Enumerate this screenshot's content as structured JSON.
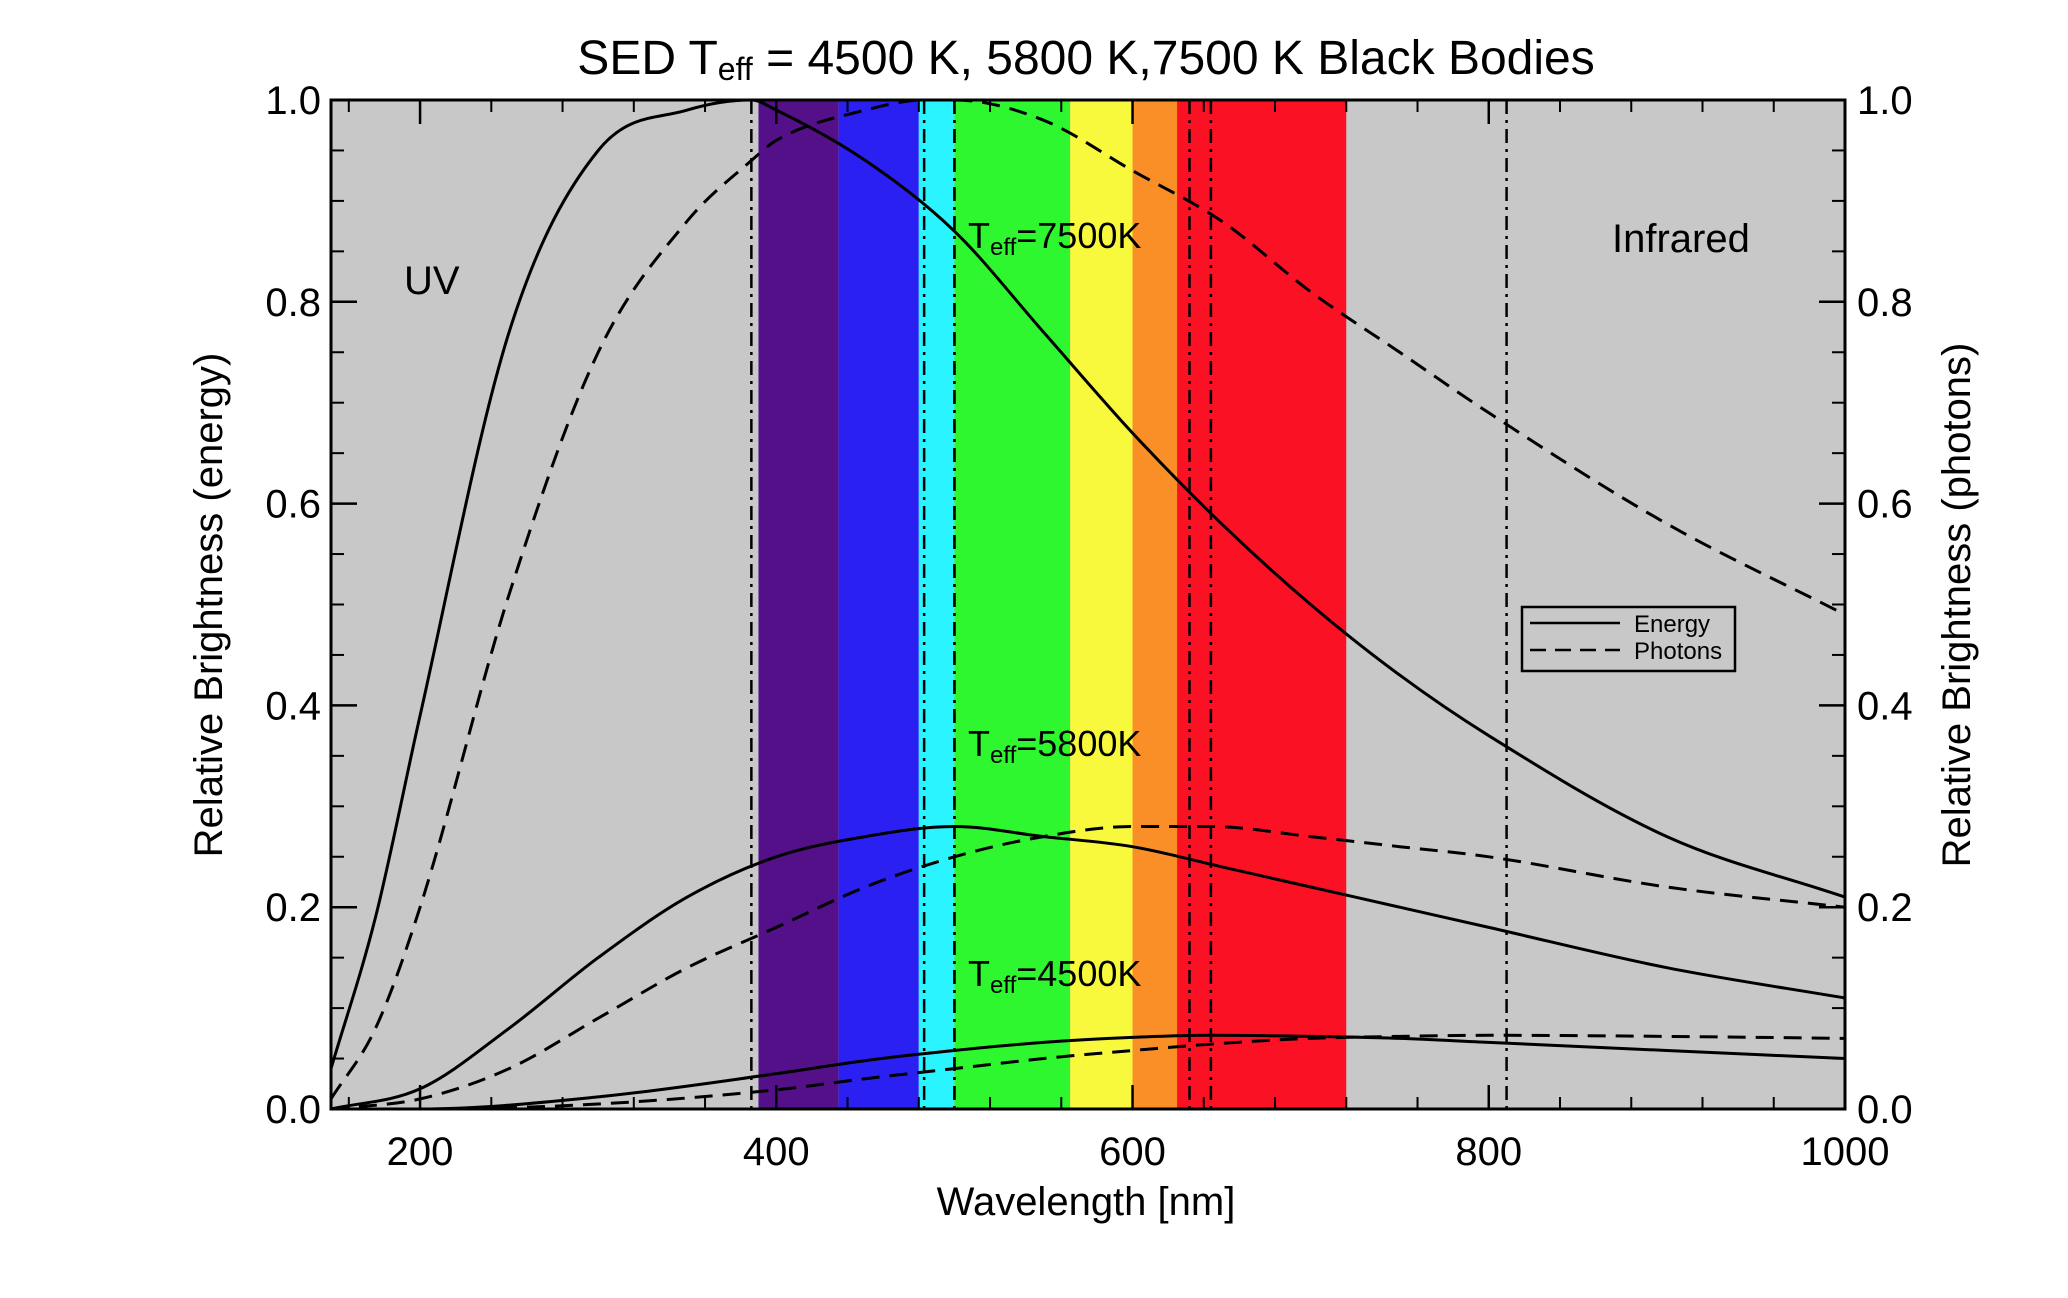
{
  "chart_data": {
    "type": "line",
    "title": {
      "prefix": "SED T",
      "subscript": "eff",
      "suffix": " = 4500 K, 5800 K,7500 K Black Bodies"
    },
    "xlabel": "Wavelength [nm]",
    "ylabel_left": "Relative Brightness (energy)",
    "ylabel_right": "Relative Brightness (photons)",
    "xlim": [
      150,
      1000
    ],
    "ylim": [
      0,
      1
    ],
    "x_ticks": [
      200,
      400,
      600,
      800,
      1000
    ],
    "y_ticks": [
      0.0,
      0.2,
      0.4,
      0.6,
      0.8,
      1.0
    ],
    "y_tick_labels": [
      "0.0",
      "0.2",
      "0.4",
      "0.6",
      "0.8",
      "1.0"
    ],
    "background_color": "#c8c8c8",
    "spectrum_bands": [
      {
        "x0": 390,
        "x1": 435,
        "color": "#541089"
      },
      {
        "x0": 435,
        "x1": 480,
        "color": "#2a20f2"
      },
      {
        "x0": 480,
        "x1": 500,
        "color": "#29f4ff"
      },
      {
        "x0": 500,
        "x1": 565,
        "color": "#2ff72f"
      },
      {
        "x0": 565,
        "x1": 600,
        "color": "#f8f83c"
      },
      {
        "x0": 600,
        "x1": 625,
        "color": "#f98f26"
      },
      {
        "x0": 625,
        "x1": 720,
        "color": "#fa1124"
      }
    ],
    "peak_markers": [
      {
        "x": 386
      },
      {
        "x": 483
      },
      {
        "x": 500
      },
      {
        "x": 500
      },
      {
        "x": 632
      },
      {
        "x": 644
      },
      {
        "x": 810
      }
    ],
    "region_labels": [
      "UV",
      "Infrared"
    ],
    "series": [
      {
        "temperature": 7500,
        "kind": "energy",
        "style": "solid",
        "x": [
          150,
          175,
          200,
          250,
          300,
          350,
          386,
          400,
          450,
          500,
          550,
          600,
          650,
          700,
          750,
          800,
          900,
          1000
        ],
        "y": [
          0.04,
          0.19,
          0.39,
          0.77,
          0.95,
          0.99,
          1.0,
          0.99,
          0.94,
          0.87,
          0.77,
          0.67,
          0.58,
          0.5,
          0.43,
          0.37,
          0.27,
          0.21
        ]
      },
      {
        "temperature": 7500,
        "kind": "photons",
        "style": "dashed",
        "x": [
          150,
          175,
          200,
          250,
          300,
          350,
          386,
          400,
          450,
          483,
          500,
          550,
          600,
          650,
          700,
          750,
          800,
          900,
          1000
        ],
        "y": [
          0.01,
          0.08,
          0.2,
          0.51,
          0.75,
          0.88,
          0.94,
          0.96,
          0.99,
          1.0,
          1.0,
          0.98,
          0.93,
          0.88,
          0.81,
          0.75,
          0.69,
          0.58,
          0.49
        ]
      },
      {
        "temperature": 5800,
        "kind": "energy",
        "style": "solid",
        "x": [
          150,
          200,
          250,
          300,
          350,
          400,
          450,
          500,
          550,
          600,
          650,
          700,
          750,
          800,
          900,
          1000
        ],
        "y": [
          0.0,
          0.02,
          0.08,
          0.15,
          0.21,
          0.25,
          0.27,
          0.28,
          0.27,
          0.26,
          0.24,
          0.22,
          0.2,
          0.18,
          0.14,
          0.11
        ]
      },
      {
        "temperature": 5800,
        "kind": "photons",
        "style": "dashed",
        "x": [
          150,
          200,
          250,
          300,
          350,
          400,
          450,
          500,
          550,
          600,
          644,
          700,
          750,
          800,
          900,
          1000
        ],
        "y": [
          0.0,
          0.01,
          0.04,
          0.09,
          0.14,
          0.18,
          0.22,
          0.25,
          0.27,
          0.28,
          0.28,
          0.27,
          0.26,
          0.25,
          0.22,
          0.2
        ]
      },
      {
        "temperature": 4500,
        "kind": "energy",
        "style": "solid",
        "x": [
          150,
          200,
          300,
          400,
          450,
          500,
          550,
          600,
          644,
          700,
          750,
          800,
          900,
          1000
        ],
        "y": [
          0.0,
          0.0,
          0.012,
          0.035,
          0.048,
          0.058,
          0.066,
          0.071,
          0.073,
          0.072,
          0.07,
          0.066,
          0.058,
          0.05
        ]
      },
      {
        "temperature": 4500,
        "kind": "photons",
        "style": "dashed",
        "x": [
          150,
          200,
          300,
          400,
          450,
          500,
          550,
          600,
          650,
          700,
          750,
          800,
          900,
          1000
        ],
        "y": [
          0.0,
          0.0,
          0.005,
          0.019,
          0.03,
          0.04,
          0.05,
          0.058,
          0.065,
          0.07,
          0.072,
          0.073,
          0.072,
          0.07
        ]
      }
    ],
    "curve_labels": [
      {
        "prefix": "T",
        "subscript": "eff",
        "suffix": "=7500K"
      },
      {
        "prefix": "T",
        "subscript": "eff",
        "suffix": "=5800K"
      },
      {
        "prefix": "T",
        "subscript": "eff",
        "suffix": "=4500K"
      }
    ],
    "legend": {
      "position": "right",
      "entries": [
        {
          "label": "Energy",
          "style": "solid"
        },
        {
          "label": "Photons",
          "style": "dashed"
        }
      ]
    }
  }
}
